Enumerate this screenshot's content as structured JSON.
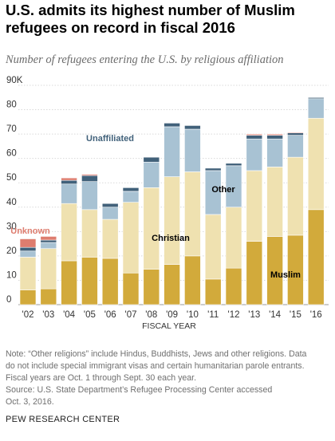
{
  "title": "U.S. admits its highest number of Muslim refugees on record in fiscal 2016",
  "subtitle": "Number of refugees entering the U.S. by religious affiliation",
  "notes": [
    "Note: “Other religions” include Hindus, Buddhists, Jews and other religions. Data",
    "do not include special immigrant visas and certain humanitarian parole entrants.",
    "Fiscal years are Oct. 1 through Sept. 30 each year.",
    "Source: U.S. State Department’s Refugee Processing Center accessed",
    "Oct. 3, 2016."
  ],
  "source_org": "PEW RESEARCH CENTER",
  "colors": {
    "muslim": "#d2aa3b",
    "christian": "#efe1b0",
    "other": "#a8c2d3",
    "unaffiliated": "#41617a",
    "unknown": "#de7d6f",
    "grid": "#d9d9d9",
    "axis_text": "#333333"
  },
  "chart_data": {
    "type": "bar",
    "stacked": true,
    "categories": [
      "'02",
      "'03",
      "'04",
      "'05",
      "'06",
      "'07",
      "'08",
      "'09",
      "'10",
      "'11",
      "'12",
      "'13",
      "'14",
      "'15",
      "'16"
    ],
    "xlabel": "FISCAL YEAR",
    "ylabel": "",
    "ylim": [
      0,
      90
    ],
    "ytick_values": [
      0,
      10,
      20,
      30,
      40,
      50,
      60,
      70,
      80,
      90
    ],
    "ytick_labels": [
      "0",
      "10",
      "20",
      "30",
      "40",
      "50",
      "60",
      "70",
      "80",
      "90K"
    ],
    "grid": true,
    "series": [
      {
        "name": "Muslim",
        "color_key": "muslim",
        "values": [
          6,
          6.5,
          18,
          19.5,
          19,
          13,
          14.5,
          16.5,
          20,
          10.5,
          15,
          26,
          28,
          28.5,
          39
        ]
      },
      {
        "name": "Christian",
        "color_key": "christian",
        "values": [
          13.5,
          16.5,
          23.5,
          19.5,
          16,
          29,
          33.5,
          36,
          34.5,
          26.5,
          25,
          29,
          28.5,
          32,
          37.5
        ]
      },
      {
        "name": "Other",
        "color_key": "other",
        "values": [
          2.5,
          2.5,
          8,
          11.5,
          5,
          4.5,
          10.5,
          20.5,
          17.5,
          18,
          17,
          13,
          11.5,
          9,
          8
        ]
      },
      {
        "name": "Unaffiliated",
        "color_key": "unaffiliated",
        "values": [
          1.5,
          1,
          1.5,
          2.5,
          1.5,
          1.5,
          2,
          1.5,
          1.5,
          1,
          1,
          1.5,
          1.5,
          1,
          0.5
        ]
      },
      {
        "name": "Unknown",
        "color_key": "unknown",
        "values": [
          3.5,
          1.5,
          1,
          0.5,
          0,
          0,
          0,
          0,
          0,
          0,
          0,
          0.5,
          0.5,
          0.3,
          0
        ]
      }
    ]
  }
}
